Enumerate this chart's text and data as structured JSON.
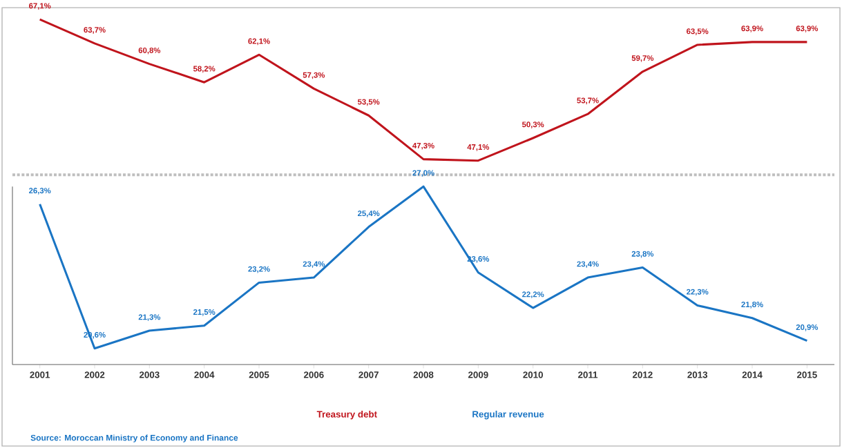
{
  "chart_data": [
    {
      "type": "line",
      "categories": [
        "2001",
        "2002",
        "2003",
        "2004",
        "2005",
        "2006",
        "2007",
        "2008",
        "2009",
        "2010",
        "2011",
        "2012",
        "2013",
        "2014",
        "2015"
      ],
      "tick_labels": false,
      "legend": "bottom",
      "series": [
        {
          "name": "Treasury debt",
          "color": "#c0141c",
          "values": [
            67.1,
            63.7,
            60.8,
            58.2,
            62.1,
            57.3,
            53.5,
            47.3,
            47.1,
            50.3,
            53.7,
            59.7,
            63.5,
            63.9,
            63.9
          ],
          "value_labels": [
            "67,1%",
            "63,7%",
            "60,8%",
            "58,2%",
            "62,1%",
            "57,3%",
            "53,5%",
            "47,3%",
            "47,1%",
            "50,3%",
            "53,7%",
            "59,7%",
            "63,5%",
            "63,9%",
            "63,9%"
          ]
        }
      ]
    },
    {
      "type": "line",
      "categories": [
        "2001",
        "2002",
        "2003",
        "2004",
        "2005",
        "2006",
        "2007",
        "2008",
        "2009",
        "2010",
        "2011",
        "2012",
        "2013",
        "2014",
        "2015"
      ],
      "tick_labels": "x",
      "legend": "bottom",
      "annotations": [
        "Source: Moroccan Ministry of Economy and Finance"
      ],
      "series": [
        {
          "name": "Regular revenue",
          "color": "#1a75c4",
          "values": [
            26.3,
            20.6,
            21.3,
            21.5,
            23.2,
            23.4,
            25.4,
            27.0,
            23.6,
            22.2,
            23.4,
            23.8,
            22.3,
            21.8,
            20.9
          ],
          "value_labels": [
            "26,3%",
            "20,6%",
            "21,3%",
            "21,5%",
            "23,2%",
            "23,4%",
            "25,4%",
            "27,0%",
            "23,6%",
            "22,2%",
            "23,4%",
            "23,8%",
            "22,3%",
            "21,8%",
            "20,9%"
          ]
        }
      ]
    }
  ]
}
